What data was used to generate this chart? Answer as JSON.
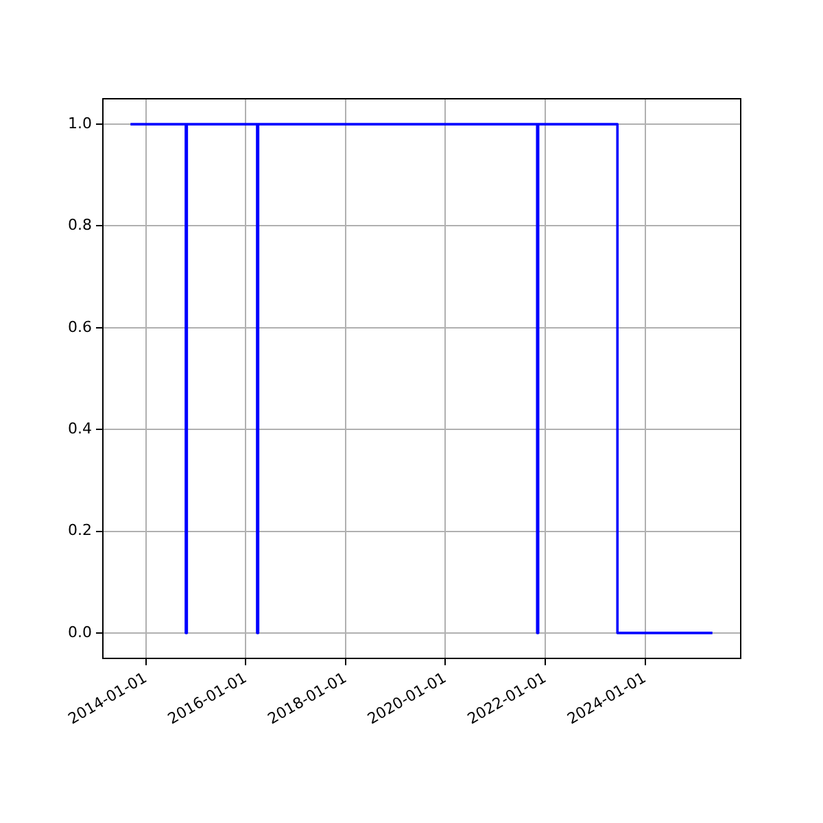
{
  "chart_data": {
    "type": "step",
    "x": [
      "2013-09-10",
      "2014-10-20",
      "2014-10-27",
      "2016-03-25",
      "2016-04-01",
      "2021-11-03",
      "2021-11-10",
      "2023-06-13",
      "2025-05-08"
    ],
    "series": [
      {
        "color": "#0000ff",
        "values": [
          1,
          0,
          1,
          0,
          1,
          0,
          1,
          0,
          0
        ]
      }
    ],
    "xlim": [
      "2013-02-20",
      "2025-12-01"
    ],
    "xticks": [
      "2014-01-01",
      "2016-01-01",
      "2018-01-01",
      "2020-01-01",
      "2022-01-01",
      "2024-01-01"
    ],
    "ylim": [
      -0.05,
      1.05
    ],
    "yticks": [
      {
        "value": 0,
        "label": "0.0"
      },
      {
        "value": 0.2,
        "label": "0.2"
      },
      {
        "value": 0.4,
        "label": "0.4"
      },
      {
        "value": 0.6,
        "label": "0.6"
      },
      {
        "value": 0.8,
        "label": "0.8"
      },
      {
        "value": 1,
        "label": "1.0"
      }
    ],
    "grid": true,
    "legend": false
  }
}
